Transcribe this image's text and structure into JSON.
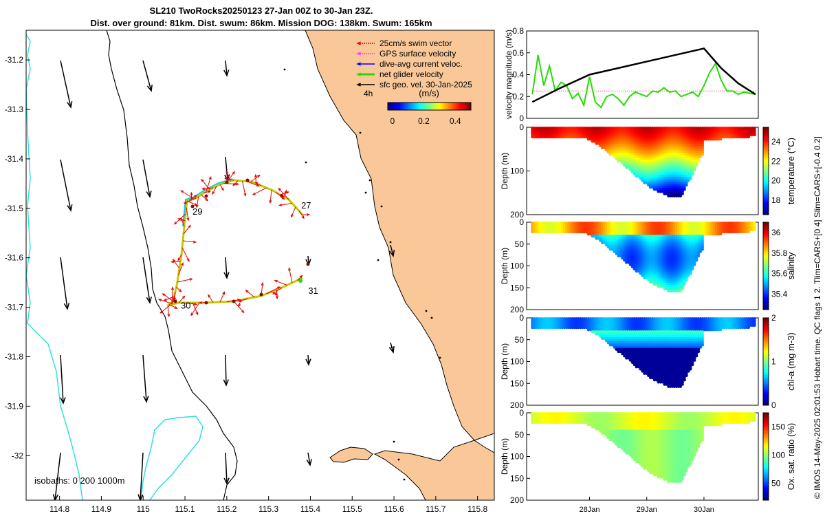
{
  "title": {
    "line1": "SL210 TwoRocks20250123 27-Jan 00Z to 30-Jan 23Z.",
    "line2": "Dist. over ground: 81km. Dist. swum: 86km. Mission DOG: 138km. Swum: 165km"
  },
  "side_note": "© IMOS 14-May-2025 02:01:53 Hobart time. QC flags 1  2. Tlim=CARS+[0 4] Slim=CARS+[-0.4 0.2]",
  "colors": {
    "land": "#fac898",
    "isobath": "#2ee0e0",
    "coast": "#000000",
    "track_red": "#e00000",
    "net_green": "#22dd00",
    "gps_magenta": "#ff33ff",
    "dive_blue": "#0000ff",
    "chl_dot": "#222266"
  },
  "map": {
    "xticks": [
      "114.8",
      "114.9",
      "115",
      "115.1",
      "115.2",
      "115.3",
      "115.4",
      "115.5",
      "115.6",
      "115.7",
      "115.8"
    ],
    "yticks": [
      "-31.2",
      "-31.3",
      "-31.4",
      "-31.5",
      "-31.6",
      "-31.7",
      "-31.8",
      "-31.9",
      "-32"
    ],
    "xlim": [
      114.72,
      115.84
    ],
    "ylim": [
      -32.09,
      -31.14
    ],
    "day_labels": [
      {
        "text": "27",
        "lon": 115.378,
        "lat": -31.495
      },
      {
        "text": "29",
        "lon": 115.118,
        "lat": -31.507
      },
      {
        "text": "30",
        "lon": 115.09,
        "lat": -31.697
      },
      {
        "text": "31",
        "lon": 115.395,
        "lat": -31.667
      }
    ],
    "isobath_label": "isobaths: 0   200  1000m",
    "legend": {
      "items": [
        "25cm/s swim vector",
        "GPS surface velocity",
        "dive-avg current veloc.",
        "net glider velocity",
        "sfc geo. vel. 30-Jan-2025"
      ],
      "interval": "4h",
      "colorbar_title": "(m/s)",
      "colorbar_ticks": [
        "0",
        "0.2",
        "0.4"
      ],
      "colorbar_range": [
        -0.03,
        0.5
      ]
    }
  },
  "chart_data": [
    {
      "type": "line",
      "title": "",
      "ylabel": "velocity magnitude (m/s)",
      "ylim": [
        0,
        0.8
      ],
      "yticks": [
        "0",
        "0.2",
        "0.4",
        "0.6",
        "0.8"
      ],
      "x_unit": "days since 27-Jan 00Z",
      "xlim": [
        -0.1,
        3.95
      ],
      "series": [
        {
          "name": "sfc geo. vel. magnitude",
          "x": [
            0,
            0.5,
            1.0,
            1.5,
            2.0,
            2.5,
            3.0,
            3.3,
            3.6,
            3.9
          ],
          "y": [
            0.15,
            0.28,
            0.4,
            0.46,
            0.52,
            0.58,
            0.64,
            0.46,
            0.32,
            0.22
          ]
        },
        {
          "name": "net glider velocity",
          "x": [
            0,
            0.1,
            0.2,
            0.3,
            0.4,
            0.5,
            0.6,
            0.7,
            0.8,
            0.9,
            1.0,
            1.1,
            1.2,
            1.3,
            1.4,
            1.5,
            1.6,
            1.7,
            1.8,
            1.9,
            2.0,
            2.1,
            2.2,
            2.3,
            2.4,
            2.5,
            2.6,
            2.7,
            2.8,
            2.9,
            3.0,
            3.1,
            3.2,
            3.3,
            3.4,
            3.5,
            3.6,
            3.7,
            3.8,
            3.9
          ],
          "y": [
            0.22,
            0.58,
            0.3,
            0.48,
            0.25,
            0.33,
            0.3,
            0.18,
            0.23,
            0.12,
            0.38,
            0.15,
            0.1,
            0.2,
            0.22,
            0.18,
            0.12,
            0.2,
            0.24,
            0.22,
            0.2,
            0.25,
            0.24,
            0.28,
            0.24,
            0.25,
            0.2,
            0.22,
            0.24,
            0.2,
            0.3,
            0.42,
            0.5,
            0.35,
            0.25,
            0.25,
            0.22,
            0.24,
            0.23,
            0.22
          ]
        },
        {
          "name": "25cm/s reference",
          "x": [
            0,
            3.9
          ],
          "y": [
            0.25,
            0.25
          ]
        }
      ]
    },
    {
      "type": "scatter",
      "title": "",
      "ylabel": "Depth (m)",
      "colorbar_label": "temperature (°C)",
      "colorbar_ticks": [
        "18",
        "20",
        "22",
        "24"
      ],
      "colorbar_range": [
        16.5,
        25.5
      ],
      "ylim": [
        200,
        0
      ],
      "yticks": [
        "0",
        "100",
        "200"
      ],
      "variable": "temperature"
    },
    {
      "type": "scatter",
      "title": "",
      "ylabel": "Depth (m)",
      "colorbar_label": "salinity",
      "colorbar_ticks": [
        "35.4",
        "35.6",
        "35.8",
        "36"
      ],
      "colorbar_range": [
        35.25,
        36.1
      ],
      "ylim": [
        200,
        0
      ],
      "yticks": [
        "0",
        "50",
        "100",
        "150",
        "200"
      ],
      "variable": "salinity"
    },
    {
      "type": "scatter",
      "title": "",
      "ylabel": "Depth (m)",
      "colorbar_label": "chl-a (mg m-3)",
      "colorbar_ticks": [
        "0",
        "1",
        "2"
      ],
      "colorbar_range": [
        0,
        2
      ],
      "ylim": [
        200,
        0
      ],
      "yticks": [
        "0",
        "50",
        "100",
        "150",
        "200"
      ],
      "variable": "chla"
    },
    {
      "type": "scatter",
      "title": "",
      "ylabel": "Depth (m)",
      "xlabel": "",
      "colorbar_label": "Ox. sat. ratio (%)",
      "colorbar_ticks": [
        "50",
        "100",
        "150"
      ],
      "colorbar_range": [
        20,
        175
      ],
      "ylim": [
        200,
        0
      ],
      "yticks": [
        "0",
        "50",
        "100",
        "150",
        "200"
      ],
      "xticks": [
        "28Jan",
        "29Jan",
        "30Jan"
      ],
      "variable": "oxygen"
    }
  ]
}
